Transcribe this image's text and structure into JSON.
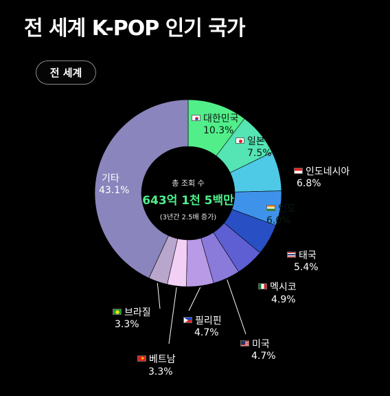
{
  "title": "전 세계 K-POP 인기 국가",
  "filter_chip": "전 세계",
  "center": {
    "subtitle": "총 조회 수",
    "value": "643억 1천 5백만",
    "note": "(3년간 2.5배 증가)"
  },
  "chart_data": {
    "type": "pie",
    "donut": true,
    "categories": [
      "대한민국",
      "일본",
      "인도네시아",
      "인도",
      "태국",
      "멕시코",
      "미국",
      "필리핀",
      "베트남",
      "브라질",
      "기타"
    ],
    "values": [
      10.3,
      7.5,
      6.8,
      6.0,
      5.4,
      4.9,
      4.7,
      4.7,
      3.3,
      3.3,
      43.1
    ],
    "value_labels": [
      "10.3%",
      "7.5%",
      "6.8%",
      "6.0%",
      "5.4%",
      "4.9%",
      "4.7%",
      "4.7%",
      "3.3%",
      "3.3%",
      "43.1%"
    ],
    "colors": [
      "#52ee8a",
      "#55e4b4",
      "#4ecae6",
      "#3f92ea",
      "#2850c4",
      "#5d5fd2",
      "#8a7ada",
      "#b89ae6",
      "#f2cff4",
      "#b9a6cc",
      "#8a85bc"
    ],
    "flags": [
      "kr",
      "jp",
      "id",
      "in",
      "th",
      "mx",
      "us",
      "ph",
      "vn",
      "br",
      ""
    ]
  }
}
